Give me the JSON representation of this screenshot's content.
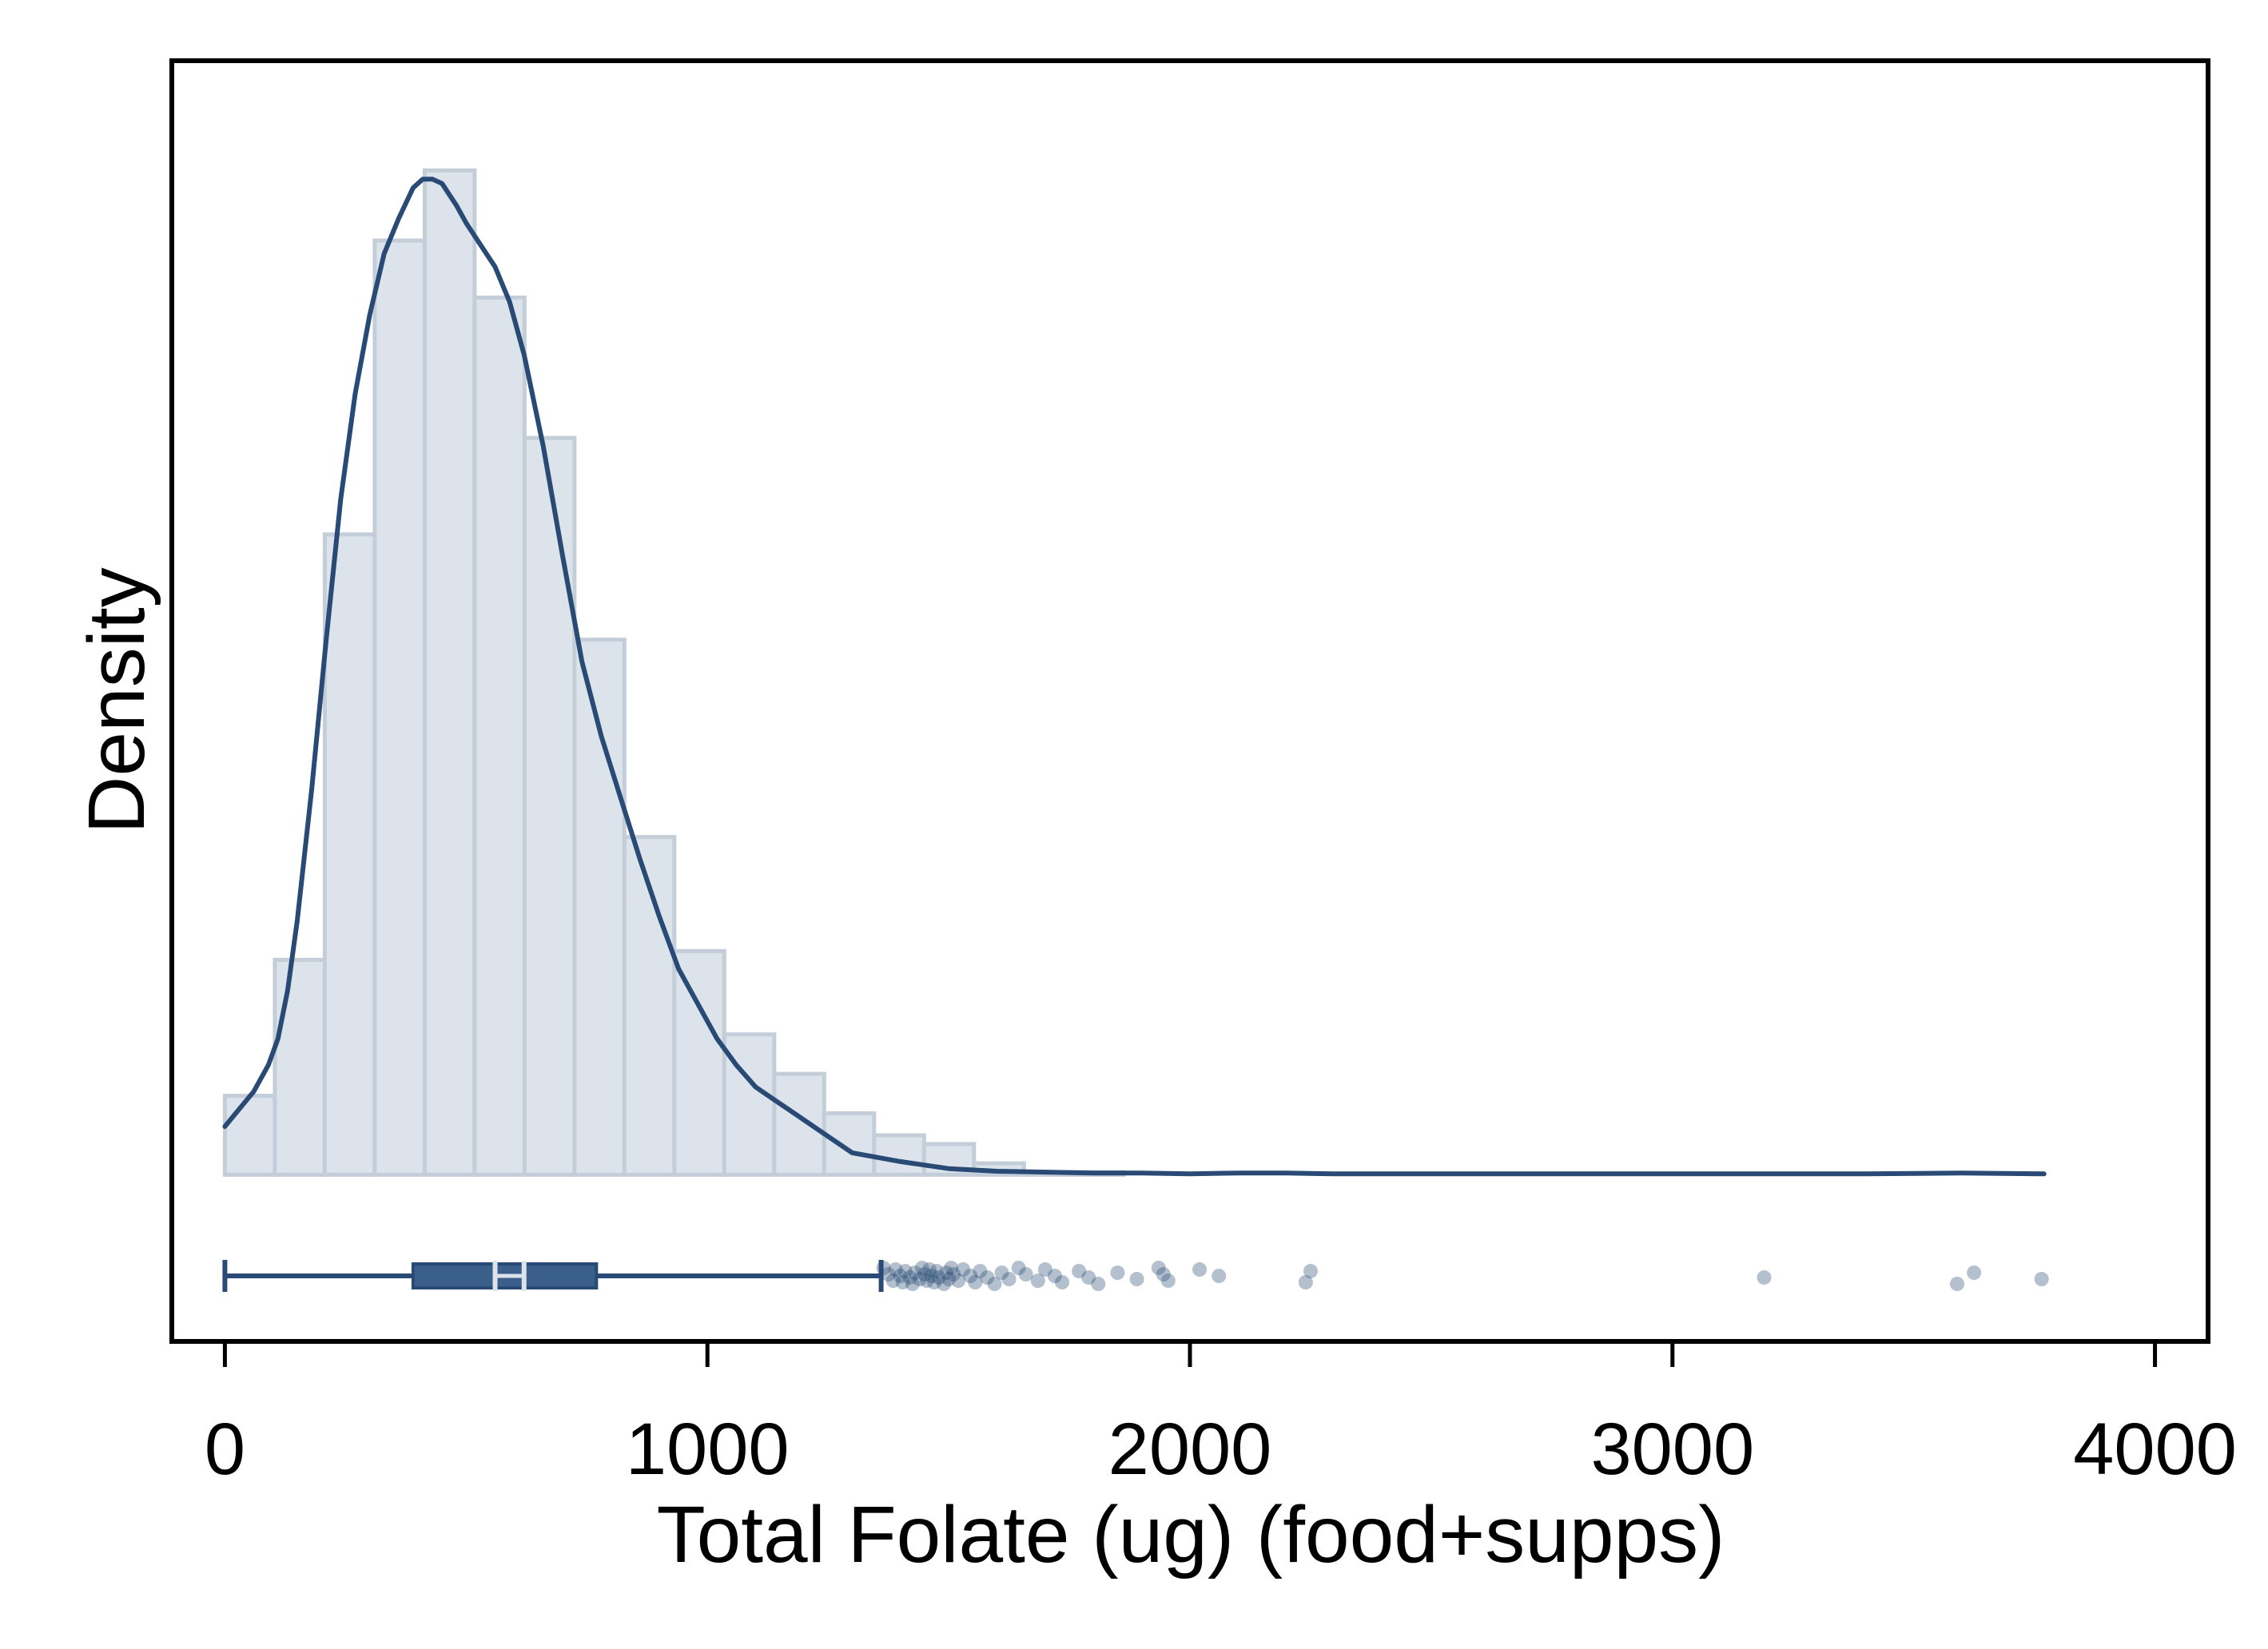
{
  "chart_data": {
    "type": "histogram",
    "title": "",
    "xlabel": "Total Folate (ug) (food+supps)",
    "ylabel": "Density",
    "xlim": [
      -110,
      4110
    ],
    "ylim": [
      -0.00019,
      0.00127
    ],
    "grid": false,
    "legend": "none",
    "x_ticks": [
      0,
      1000,
      2000,
      3000,
      4000
    ],
    "x_tick_labels": [
      "0",
      "1000",
      "2000",
      "3000",
      "4000"
    ],
    "colors": {
      "bar_fill": "#dce3ea",
      "bar_stroke": "#c3ced9",
      "line": "#284a74",
      "box": "#3a5f8a",
      "box_median": "#dce3ea",
      "outlier": "#284a74",
      "frame": "#000000"
    },
    "histogram": {
      "bin_start": 0,
      "bin_width": 103.5,
      "densities": [
        9e-05,
        0.000245,
        0.00073,
        0.001065,
        0.001145,
        0.001,
        0.00084,
        0.00061,
        0.000385,
        0.000255,
        0.00016,
        0.000115,
        7e-05,
        4.5e-05,
        3.5e-05,
        1.3e-05,
        3e-06,
        3e-06
      ]
    },
    "density_curve": {
      "x": [
        0,
        30,
        60,
        90,
        110,
        130,
        150,
        180,
        210,
        240,
        270,
        300,
        330,
        360,
        390,
        410,
        430,
        450,
        480,
        500,
        530,
        560,
        590,
        620,
        660,
        700,
        740,
        780,
        820,
        860,
        900,
        940,
        980,
        1020,
        1060,
        1100,
        1140,
        1180,
        1220,
        1260,
        1300,
        1350,
        1400,
        1450,
        1500,
        1600,
        1700,
        1800,
        1900,
        2000,
        2100,
        2200,
        2300,
        2400,
        2600,
        2800,
        3000,
        3200,
        3400,
        3600,
        3770
      ],
      "y": [
        5.5e-05,
        7.5e-05,
        9.5e-05,
        0.000125,
        0.000155,
        0.00021,
        0.00029,
        0.00044,
        0.00061,
        0.00077,
        0.00089,
        0.00098,
        0.00105,
        0.00109,
        0.001125,
        0.001135,
        0.001135,
        0.00113,
        0.001105,
        0.001085,
        0.00106,
        0.001035,
        0.000995,
        0.000935,
        0.00083,
        0.000705,
        0.000585,
        0.0005,
        0.00043,
        0.00036,
        0.000295,
        0.000235,
        0.000195,
        0.000155,
        0.000125,
        0.0001,
        8.5e-05,
        7e-05,
        5.5e-05,
        4e-05,
        2.5e-05,
        2e-05,
        1.5e-05,
        1.1e-05,
        7e-06,
        4e-06,
        3e-06,
        2e-06,
        2e-06,
        1e-06,
        2e-06,
        2e-06,
        1e-06,
        1e-06,
        1e-06,
        1e-06,
        1e-06,
        1e-06,
        1e-06,
        2e-06,
        1e-06
      ]
    },
    "boxplot": {
      "whisker_low": 0,
      "q1": 390,
      "median": 560,
      "mean": 620,
      "q3": 770,
      "whisker_high": 1360
    },
    "outliers": [
      1365,
      1375,
      1385,
      1390,
      1400,
      1405,
      1410,
      1420,
      1425,
      1430,
      1440,
      1445,
      1450,
      1455,
      1460,
      1465,
      1470,
      1475,
      1480,
      1490,
      1495,
      1500,
      1505,
      1510,
      1520,
      1530,
      1545,
      1555,
      1565,
      1580,
      1595,
      1610,
      1625,
      1645,
      1660,
      1685,
      1700,
      1720,
      1735,
      1770,
      1790,
      1810,
      1850,
      1890,
      1935,
      1945,
      1955,
      2020,
      2060,
      2240,
      2250,
      3190,
      3590,
      3625,
      3765
    ]
  }
}
